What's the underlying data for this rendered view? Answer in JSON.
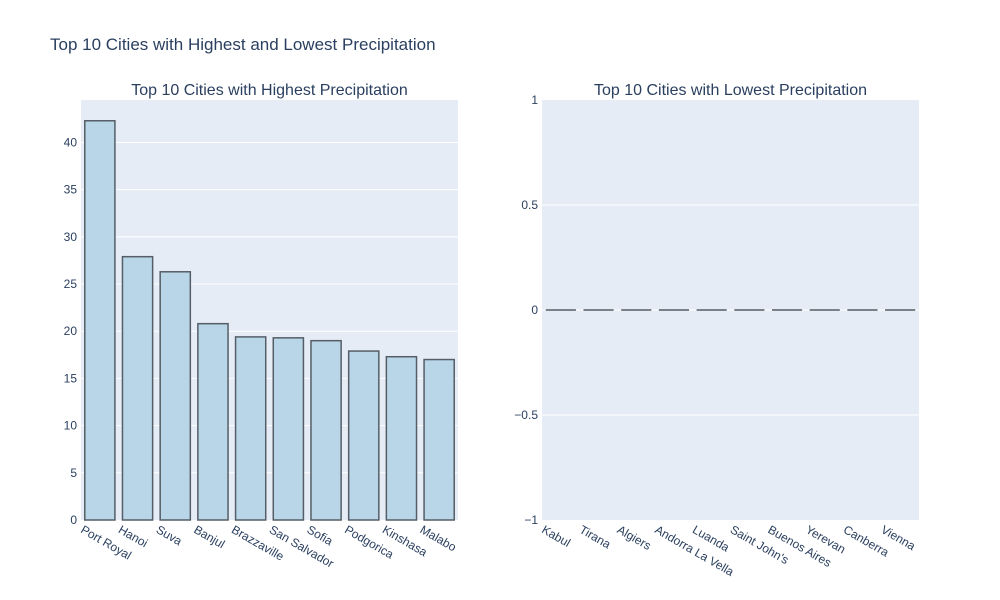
{
  "figure_title": "Top 10 Cities with Highest and Lowest Precipitation",
  "colors": {
    "plot_bg": "#e5ecf6",
    "grid": "#ffffff",
    "bar_fill": "#b8d6e8",
    "bar_stroke": "#555e66",
    "text": "#2a3f5f"
  },
  "chart_data": [
    {
      "type": "bar",
      "title": "Top 10 Cities with Highest Precipitation",
      "categories": [
        "Port Royal",
        "Hanoi",
        "Suva",
        "Banjul",
        "Brazzaville",
        "San Salvador",
        "Sofia",
        "Podgorica",
        "Kinshasa",
        "Malabo"
      ],
      "values": [
        42.3,
        27.9,
        26.3,
        20.8,
        19.4,
        19.3,
        19.0,
        17.9,
        17.3,
        17.0
      ],
      "ylim": [
        0,
        44.5
      ],
      "yticks": [
        0,
        5,
        10,
        15,
        20,
        25,
        30,
        35,
        40
      ],
      "ytick_labels": [
        "0",
        "5",
        "10",
        "15",
        "20",
        "25",
        "30",
        "35",
        "40"
      ],
      "xlabel": "",
      "ylabel": "",
      "grid": true
    },
    {
      "type": "bar",
      "title": "Top 10 Cities with Lowest Precipitation",
      "categories": [
        "Kabul",
        "Tirana",
        "Algiers",
        "Andorra La Vella",
        "Luanda",
        "Saint John's",
        "Buenos Aires",
        "Yerevan",
        "Canberra",
        "Vienna"
      ],
      "values": [
        0,
        0,
        0,
        0,
        0,
        0,
        0,
        0,
        0,
        0
      ],
      "ylim": [
        -1,
        1
      ],
      "yticks": [
        -1,
        -0.5,
        0,
        0.5,
        1
      ],
      "ytick_labels": [
        "−1",
        "−0.5",
        "0",
        "0.5",
        "1"
      ],
      "xlabel": "",
      "ylabel": "",
      "grid": true
    }
  ]
}
